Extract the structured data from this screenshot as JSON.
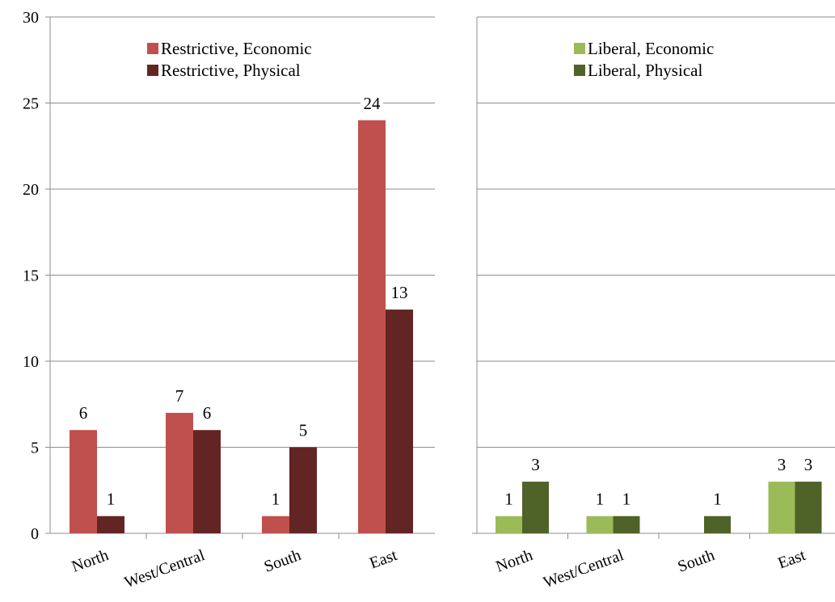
{
  "chart_data": [
    {
      "type": "bar",
      "categories": [
        "North",
        "West/Central",
        "South",
        "East"
      ],
      "ylim": [
        0,
        30
      ],
      "yticks": [
        0,
        5,
        10,
        15,
        20,
        25,
        30
      ],
      "grid": true,
      "legend_position": "top",
      "series": [
        {
          "name": "Restrictive, Economic",
          "color": "#c0504d",
          "values": [
            6,
            7,
            1,
            24
          ]
        },
        {
          "name": "Restrictive, Physical",
          "color": "#632523",
          "values": [
            1,
            6,
            5,
            13
          ]
        }
      ]
    },
    {
      "type": "bar",
      "categories": [
        "North",
        "West/Central",
        "South",
        "East"
      ],
      "ylim": [
        0,
        30
      ],
      "grid": true,
      "legend_position": "top",
      "series": [
        {
          "name": "Liberal, Economic",
          "color": "#9bbb59",
          "values": [
            1,
            1,
            null,
            3
          ]
        },
        {
          "name": "Liberal, Physical",
          "color": "#4f6228",
          "values": [
            3,
            1,
            1,
            3
          ]
        }
      ]
    }
  ]
}
